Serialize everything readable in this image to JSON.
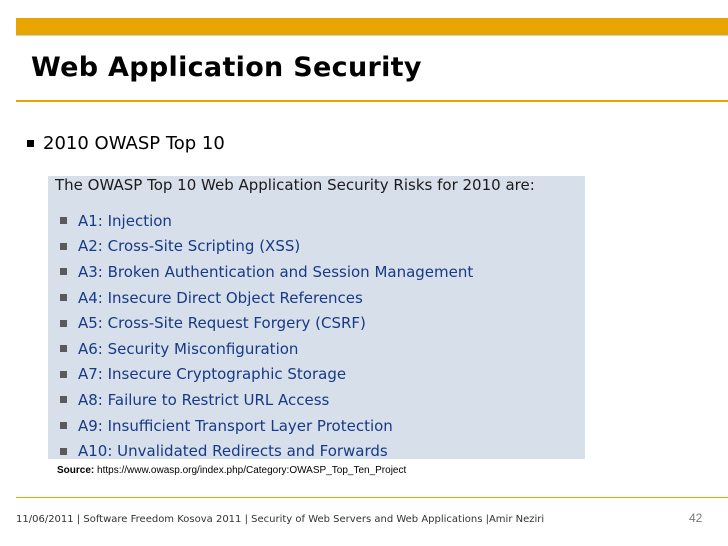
{
  "slide": {
    "title": "Web Application Security",
    "bullet": "2010 OWASP Top 10",
    "accent_color": "#e8a400"
  },
  "panel": {
    "header": "The OWASP Top 10 Web Application Security Risks for 2010 are:",
    "items": [
      "A1: Injection",
      "A2: Cross-Site Scripting (XSS)",
      "A3: Broken Authentication and Session Management",
      "A4: Insecure Direct Object References",
      "A5: Cross-Site Request Forgery (CSRF)",
      "A6: Security Misconfiguration",
      "A7: Insecure Cryptographic Storage",
      "A8: Failure to Restrict URL Access",
      "A9: Insufficient Transport Layer Protection",
      "A10: Unvalidated Redirects and Forwards"
    ]
  },
  "source": {
    "label": "Source:",
    "url": "https://www.owasp.org/index.php/Category:OWASP_Top_Ten_Project"
  },
  "footer": {
    "text": "11/06/2011 | Software Freedom Kosova 2011 | Security of Web Servers and Web Applications |Amir Neziri",
    "page_number": "42"
  }
}
